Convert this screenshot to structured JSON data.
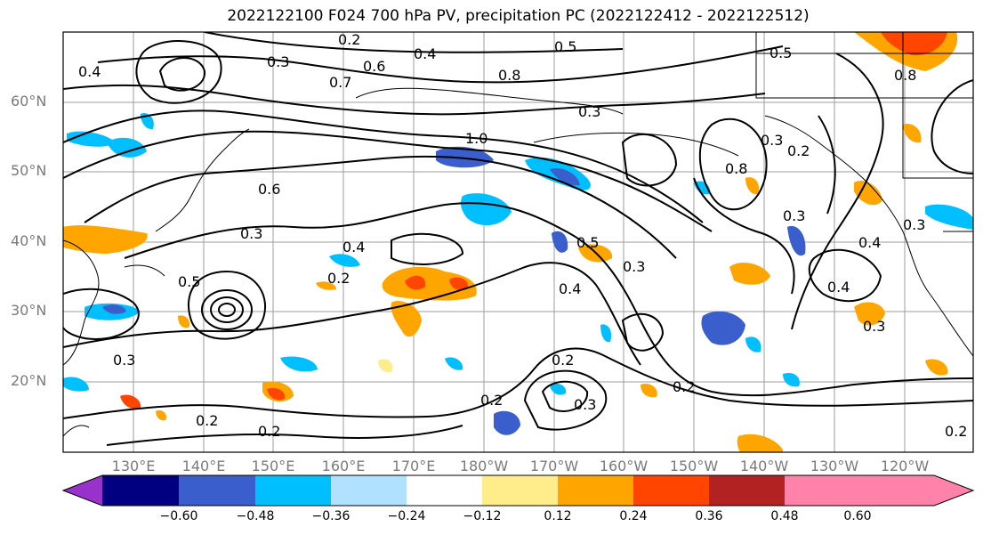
{
  "title": "2022122100 F024 700 hPa PV, precipitation PC (2022122412 - 2022122512)",
  "lat_labels": [
    "60°N",
    "50°N",
    "40°N",
    "30°N",
    "20°N"
  ],
  "lon_labels": [
    "130°E",
    "140°E",
    "150°E",
    "160°E",
    "170°E",
    "180°W",
    "170°W",
    "160°W",
    "150°W",
    "140°W",
    "130°W",
    "120°W"
  ],
  "colorbar": {
    "ticks": [
      "−0.60",
      "−0.48",
      "−0.36",
      "−0.24",
      "−0.12",
      "0.12",
      "0.24",
      "0.36",
      "0.48",
      "0.60"
    ],
    "colors": [
      "#9932CC",
      "#000080",
      "#3A5FCD",
      "#00BFFF",
      "#B0E2FF",
      "#FFFFFF",
      "#FFEC8B",
      "#FFA500",
      "#FF4500",
      "#B22222",
      "#FF82AB"
    ]
  },
  "contour_labels": [
    "0.2",
    "0.3",
    "0.4",
    "0.5",
    "0.6",
    "0.7",
    "0.8",
    "1.0"
  ]
}
